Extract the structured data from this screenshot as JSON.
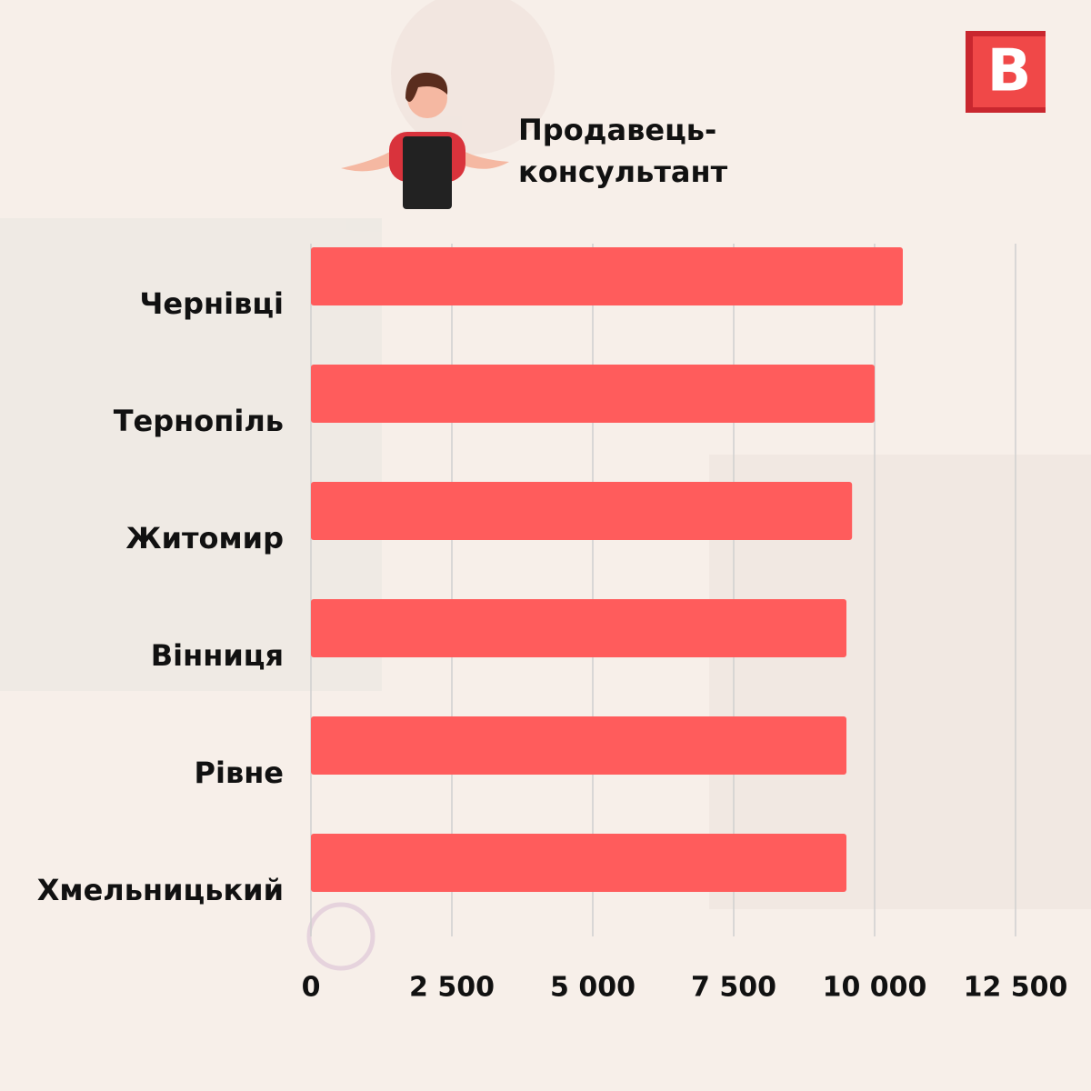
{
  "chart_data": {
    "type": "barh",
    "title": "Продавець-консультант",
    "logo": "В",
    "categories": [
      "Чернівці",
      "Тернопіль",
      "Житомир",
      "Вінниця",
      "Рівне",
      "Хмельницький"
    ],
    "values": [
      10500,
      10000,
      9600,
      9500,
      9500,
      9500
    ],
    "color": "#ff5c5c",
    "xlim": [
      0,
      12500
    ],
    "xticks": [
      0,
      {
        "value": 2500,
        "label": "2 500"
      },
      {
        "value": 5000,
        "label": "5 000"
      },
      {
        "value": 7500,
        "label": "7 500"
      },
      {
        "value": 10000,
        "label": "10 000"
      },
      {
        "value": 12500,
        "label": "12 500"
      }
    ],
    "grid": true
  }
}
